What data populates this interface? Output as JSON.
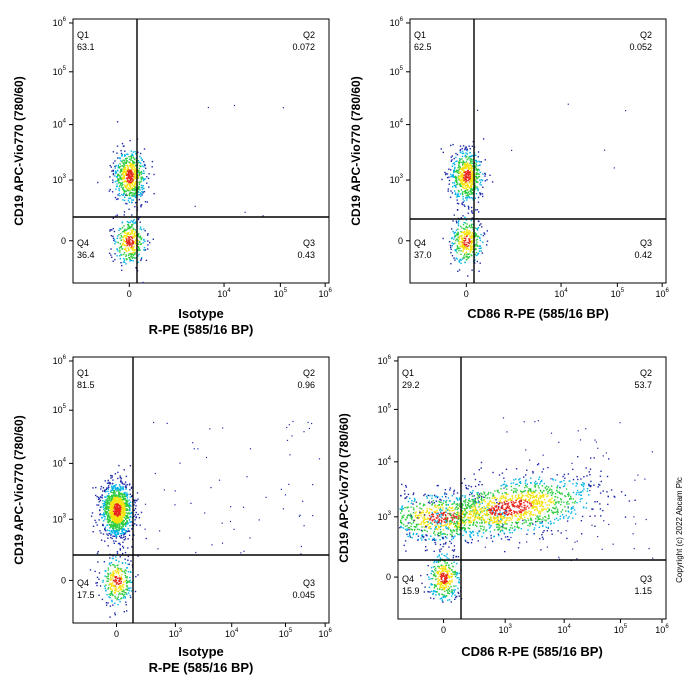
{
  "chart_data": [
    {
      "type": "scatter",
      "subtype": "flow-cytometry-density-dot-plot",
      "xlabel_line1": "Isotype",
      "xlabel_line2": "R-PE (585/16 BP)",
      "ylabel": "CD19 APC-Vio770 (780/60)",
      "x_scale": "biexponential",
      "y_scale": "biexponential",
      "x_ticks": [
        "0",
        "10^4",
        "10^5",
        "10^6"
      ],
      "y_ticks": [
        "0",
        "10^3",
        "10^4",
        "10^5",
        "10^6"
      ],
      "quadrants": [
        {
          "name": "Q1",
          "percent": "63.1"
        },
        {
          "name": "Q2",
          "percent": "0.072"
        },
        {
          "name": "Q3",
          "percent": "0.43"
        },
        {
          "name": "Q4",
          "percent": "36.4"
        }
      ],
      "populations": [
        {
          "label": "Q1",
          "x_center": 0,
          "y_center": 1200,
          "count": 600
        },
        {
          "label": "Q4",
          "x_center": 0,
          "y_center": 0,
          "count": 350
        }
      ]
    },
    {
      "type": "scatter",
      "subtype": "flow-cytometry-density-dot-plot",
      "xlabel_line1": "",
      "xlabel_line2": "CD86 R-PE  (585/16 BP)",
      "ylabel": "CD19 APC-Vio770 (780/60)",
      "x_scale": "biexponential",
      "y_scale": "biexponential",
      "x_ticks": [
        "0",
        "10^4",
        "10^5",
        "10^6"
      ],
      "y_ticks": [
        "0",
        "10^3",
        "10^4",
        "10^5",
        "10^6"
      ],
      "quadrants": [
        {
          "name": "Q1",
          "percent": "62.5"
        },
        {
          "name": "Q2",
          "percent": "0.052"
        },
        {
          "name": "Q3",
          "percent": "0.42"
        },
        {
          "name": "Q4",
          "percent": "37.0"
        }
      ],
      "populations": [
        {
          "label": "Q1",
          "x_center": 0,
          "y_center": 1200,
          "count": 600
        },
        {
          "label": "Q4",
          "x_center": 0,
          "y_center": 0,
          "count": 360
        }
      ]
    },
    {
      "type": "scatter",
      "subtype": "flow-cytometry-density-dot-plot",
      "xlabel_line1": "Isotype",
      "xlabel_line2": "R-PE (585/16 BP)",
      "ylabel": "CD19 APC-Vio770 (780/60)",
      "x_scale": "biexponential",
      "y_scale": "biexponential",
      "x_ticks": [
        "0",
        "10^3",
        "10^4",
        "10^5",
        "10^6"
      ],
      "y_ticks": [
        "0",
        "10^3",
        "10^4",
        "10^5",
        "10^6"
      ],
      "quadrants": [
        {
          "name": "Q1",
          "percent": "81.5"
        },
        {
          "name": "Q2",
          "percent": "0.96"
        },
        {
          "name": "Q3",
          "percent": "0.045"
        },
        {
          "name": "Q4",
          "percent": "17.5"
        }
      ],
      "populations": [
        {
          "label": "Q1",
          "x_center": 0,
          "y_center": 1500,
          "count": 1200
        },
        {
          "label": "Q4",
          "x_center": 0,
          "y_center": 0,
          "count": 300
        }
      ]
    },
    {
      "type": "scatter",
      "subtype": "flow-cytometry-density-dot-plot",
      "xlabel_line1": "",
      "xlabel_line2": "CD86 R-PE  (585/16 BP)",
      "ylabel": "CD19 APC-Vio770 (780/60)",
      "x_scale": "biexponential",
      "y_scale": "biexponential",
      "x_ticks": [
        "0",
        "10^3",
        "10^4",
        "10^5",
        "10^6"
      ],
      "y_ticks": [
        "0",
        "10^3",
        "10^4",
        "10^5",
        "10^6"
      ],
      "quadrants": [
        {
          "name": "Q1",
          "percent": "29.2"
        },
        {
          "name": "Q2",
          "percent": "53.7"
        },
        {
          "name": "Q3",
          "percent": "1.15"
        },
        {
          "name": "Q4",
          "percent": "15.9"
        }
      ],
      "populations": [
        {
          "label": "Q1",
          "x_center": 50,
          "y_center": 1000,
          "count": 700
        },
        {
          "label": "Q2",
          "x_center": 1200,
          "y_center": 1500,
          "count": 1300
        },
        {
          "label": "Q4",
          "x_center": 0,
          "y_center": 0,
          "count": 350
        }
      ]
    }
  ],
  "colors": {
    "density_low": "#1f2aa8",
    "density_mid_low": "#00b4e6",
    "density_mid": "#2ecc40",
    "density_mid_high": "#f5e30b",
    "density_high": "#e8271c",
    "axis": "#000000"
  },
  "copyright": "Copyright (c) 2022 Abcam Plc"
}
